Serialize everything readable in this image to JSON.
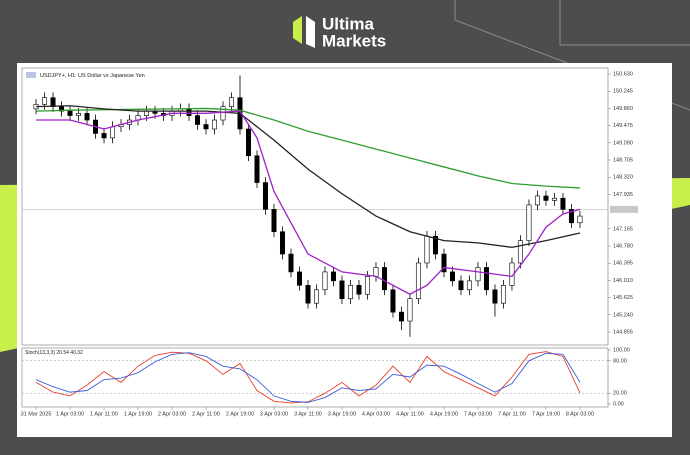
{
  "brand": {
    "line1": "Ultima",
    "line2": "Markets"
  },
  "chart_data": [
    {
      "type": "candlestick",
      "title": "USDJPY+, H1: US Dollar vs Japanese Yen",
      "x": [
        0,
        1,
        2,
        3,
        4,
        5,
        6,
        7,
        8,
        9,
        10,
        11,
        12,
        13,
        14,
        15,
        16,
        17,
        18,
        19,
        20,
        21,
        22,
        23,
        24,
        25,
        26,
        27,
        28,
        29,
        30,
        31,
        32,
        33,
        34,
        35,
        36,
        37,
        38,
        39,
        40,
        41,
        42,
        43,
        44,
        45,
        46,
        47,
        48,
        49,
        50,
        51,
        52,
        53,
        54,
        55,
        56,
        57,
        58,
        59,
        60,
        61,
        62,
        63,
        64
      ],
      "open": [
        149.85,
        149.95,
        150.1,
        149.9,
        149.8,
        149.7,
        149.75,
        149.6,
        149.3,
        149.2,
        149.45,
        149.5,
        149.6,
        149.7,
        149.8,
        149.75,
        149.7,
        149.8,
        149.85,
        149.7,
        149.5,
        149.4,
        149.6,
        149.9,
        150.1,
        149.4,
        148.8,
        148.2,
        147.6,
        147.1,
        146.6,
        146.2,
        145.9,
        145.5,
        145.8,
        146.2,
        146.0,
        145.6,
        145.9,
        145.7,
        146.1,
        146.3,
        145.8,
        145.3,
        145.1,
        145.6,
        146.4,
        147.0,
        146.6,
        146.2,
        146.0,
        145.8,
        146.0,
        146.3,
        145.8,
        145.5,
        145.9,
        146.4,
        146.9,
        147.7,
        147.9,
        147.8,
        147.85,
        147.6,
        147.3
      ],
      "high": [
        150.07,
        150.22,
        150.22,
        150.02,
        149.92,
        149.87,
        149.87,
        149.72,
        149.42,
        149.57,
        149.62,
        149.72,
        149.82,
        149.92,
        149.92,
        149.87,
        149.92,
        149.97,
        149.97,
        149.82,
        149.62,
        149.72,
        150.02,
        150.22,
        150.6,
        149.52,
        148.92,
        148.32,
        147.72,
        147.22,
        146.72,
        146.32,
        146.02,
        145.92,
        146.32,
        146.32,
        146.12,
        146.02,
        146.02,
        146.22,
        146.42,
        146.42,
        145.92,
        145.42,
        145.72,
        146.52,
        147.12,
        147.12,
        146.72,
        146.32,
        146.12,
        146.12,
        146.42,
        146.42,
        145.92,
        146.02,
        146.52,
        147.02,
        147.82,
        148.02,
        148.02,
        147.97,
        147.97,
        147.72,
        147.57
      ],
      "low": [
        149.73,
        149.83,
        149.78,
        149.68,
        149.58,
        149.58,
        149.48,
        149.18,
        149.08,
        149.08,
        149.33,
        149.38,
        149.48,
        149.58,
        149.63,
        149.58,
        149.58,
        149.68,
        149.58,
        149.38,
        149.28,
        149.28,
        149.48,
        149.78,
        149.28,
        148.68,
        148.08,
        147.48,
        146.98,
        146.48,
        146.08,
        145.78,
        145.38,
        145.38,
        145.68,
        145.88,
        145.48,
        145.48,
        145.58,
        145.58,
        145.98,
        145.68,
        145.18,
        144.9,
        144.75,
        145.48,
        146.28,
        146.48,
        146.08,
        145.88,
        145.68,
        145.68,
        145.88,
        145.68,
        145.2,
        145.38,
        145.78,
        146.28,
        146.78,
        147.58,
        147.68,
        147.68,
        147.48,
        147.18,
        147.18
      ],
      "close": [
        149.95,
        150.1,
        149.9,
        149.8,
        149.7,
        149.75,
        149.6,
        149.3,
        149.2,
        149.45,
        149.5,
        149.6,
        149.7,
        149.8,
        149.75,
        149.7,
        149.8,
        149.85,
        149.7,
        149.5,
        149.4,
        149.6,
        149.9,
        150.1,
        149.4,
        148.8,
        148.2,
        147.6,
        147.1,
        146.6,
        146.2,
        145.9,
        145.5,
        145.8,
        146.2,
        146.0,
        145.6,
        145.9,
        145.7,
        146.1,
        146.3,
        145.8,
        145.3,
        145.1,
        145.6,
        146.4,
        147.0,
        146.6,
        146.2,
        146.0,
        145.8,
        146.0,
        146.3,
        145.8,
        145.5,
        145.9,
        146.4,
        146.9,
        147.7,
        147.9,
        147.8,
        147.85,
        147.6,
        147.3,
        147.45
      ],
      "series": [
        {
          "color": "#2e9e2e",
          "x": [
            0,
            4,
            8,
            12,
            16,
            20,
            24,
            28,
            32,
            36,
            40,
            44,
            48,
            52,
            56,
            60,
            64
          ],
          "values": [
            149.8,
            149.82,
            149.83,
            149.84,
            149.85,
            149.86,
            149.82,
            149.6,
            149.35,
            149.15,
            148.95,
            148.75,
            148.55,
            148.35,
            148.18,
            148.12,
            148.08
          ]
        },
        {
          "color": "#222222",
          "x": [
            0,
            4,
            8,
            12,
            16,
            20,
            24,
            28,
            32,
            36,
            40,
            44,
            48,
            52,
            56,
            60,
            64
          ],
          "values": [
            149.9,
            149.92,
            149.85,
            149.8,
            149.8,
            149.8,
            149.75,
            149.15,
            148.5,
            147.95,
            147.45,
            147.1,
            146.9,
            146.85,
            146.75,
            146.9,
            147.07
          ]
        },
        {
          "color": "#a020c8",
          "x": [
            0,
            4,
            8,
            12,
            16,
            20,
            24,
            26,
            28,
            30,
            32,
            36,
            40,
            44,
            46,
            48,
            52,
            56,
            58,
            60,
            62,
            64
          ],
          "values": [
            149.6,
            149.6,
            149.4,
            149.6,
            149.75,
            149.75,
            149.8,
            149.2,
            148.0,
            147.3,
            146.6,
            146.2,
            146.1,
            145.7,
            145.9,
            146.3,
            146.2,
            146.1,
            146.6,
            147.2,
            147.5,
            147.6
          ]
        }
      ],
      "price_line": 147.6,
      "xlim": [
        -1.65,
        67.3
      ],
      "ylim": [
        144.564,
        150.72
      ],
      "yticks": [
        {
          "value": 150.63,
          "label": "150.630"
        },
        {
          "value": 150.245,
          "label": "150.245"
        },
        {
          "value": 149.86,
          "label": "149.860"
        },
        {
          "value": 149.475,
          "label": "149.475"
        },
        {
          "value": 149.09,
          "label": "149.090"
        },
        {
          "value": 148.705,
          "label": "148.705"
        },
        {
          "value": 148.32,
          "label": "148.320"
        },
        {
          "value": 147.935,
          "label": "147.935"
        },
        {
          "value": 147.165,
          "label": "147.165"
        },
        {
          "value": 146.78,
          "label": "146.780"
        },
        {
          "value": 146.395,
          "label": "146.395"
        },
        {
          "value": 146.01,
          "label": "146.010"
        },
        {
          "value": 145.625,
          "label": "145.625"
        },
        {
          "value": 145.24,
          "label": "145.240"
        },
        {
          "value": 144.855,
          "label": "144.855"
        }
      ]
    },
    {
      "type": "line",
      "title": "Stoch(13,3,3) 20.54 40.32",
      "x": [
        0,
        2,
        4,
        6,
        8,
        10,
        12,
        14,
        16,
        18,
        20,
        22,
        24,
        26,
        28,
        30,
        32,
        34,
        36,
        38,
        40,
        42,
        44,
        46,
        48,
        50,
        52,
        54,
        56,
        58,
        60,
        62,
        64
      ],
      "series": [
        {
          "color": "#e8412c",
          "values": [
            40,
            22,
            15,
            35,
            60,
            40,
            70,
            90,
            96,
            94,
            80,
            55,
            75,
            25,
            5,
            2,
            4,
            20,
            40,
            15,
            35,
            70,
            40,
            88,
            60,
            45,
            30,
            15,
            50,
            92,
            97,
            88,
            20.54
          ]
        },
        {
          "color": "#3a5fd8",
          "values": [
            45,
            32,
            22,
            25,
            45,
            48,
            58,
            78,
            92,
            95,
            88,
            70,
            65,
            45,
            15,
            5,
            3,
            12,
            30,
            25,
            28,
            55,
            50,
            72,
            70,
            55,
            38,
            22,
            38,
            80,
            94,
            92,
            40.32
          ]
        }
      ],
      "levels": [
        80,
        20
      ],
      "xlim": [
        -1.65,
        67.3
      ],
      "ylim": [
        0,
        100
      ],
      "yticks": [
        {
          "value": 0,
          "label": "0.00"
        },
        {
          "value": 20,
          "label": "20.00"
        },
        {
          "value": 80,
          "label": "80.00"
        },
        {
          "value": 100,
          "label": "100.00"
        }
      ],
      "xticks": [
        {
          "value": 0,
          "label": "31 Mar 2025"
        },
        {
          "value": 4,
          "label": "1 Apr 03:00"
        },
        {
          "value": 8,
          "label": "1 Apr 11:00"
        },
        {
          "value": 12,
          "label": "1 Apr 19:00"
        },
        {
          "value": 16,
          "label": "2 Apr 03:00"
        },
        {
          "value": 20,
          "label": "2 Apr 11:00"
        },
        {
          "value": 24,
          "label": "2 Apr 19:00"
        },
        {
          "value": 28,
          "label": "3 Apr 03:00"
        },
        {
          "value": 32,
          "label": "3 Apr 11:00"
        },
        {
          "value": 36,
          "label": "3 Apr 19:00"
        },
        {
          "value": 40,
          "label": "4 Apr 03:00"
        },
        {
          "value": 44,
          "label": "4 Apr 11:00"
        },
        {
          "value": 48,
          "label": "4 Apr 19:00"
        },
        {
          "value": 52,
          "label": "7 Apr 03:00"
        },
        {
          "value": 56,
          "label": "7 Apr 11:00"
        },
        {
          "value": 60,
          "label": "7 Apr 19:00"
        },
        {
          "value": 64,
          "label": "8 Apr 03:00"
        }
      ]
    }
  ]
}
